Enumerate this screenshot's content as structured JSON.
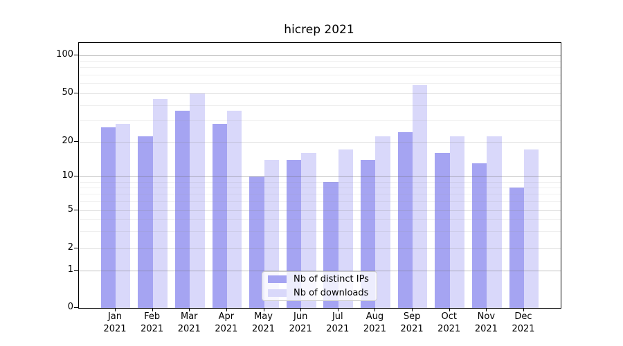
{
  "chart_data": {
    "type": "bar",
    "title": "hicrep 2021",
    "categories": [
      "Jan 2021",
      "Feb 2021",
      "Mar 2021",
      "Apr 2021",
      "May 2021",
      "Jun 2021",
      "Jul 2021",
      "Aug 2021",
      "Sep 2021",
      "Oct 2021",
      "Nov 2021",
      "Dec 2021"
    ],
    "series": [
      {
        "name": "Nb of distinct IPs",
        "color": "#a5a4f2",
        "values": [
          26,
          22,
          36,
          28,
          10,
          14,
          9,
          14,
          24,
          16,
          13,
          8
        ]
      },
      {
        "name": "Nb of downloads",
        "color": "#d9d8fa",
        "values": [
          28,
          45,
          50,
          36,
          14,
          16,
          17,
          22,
          58,
          22,
          22,
          17
        ]
      }
    ],
    "yscale": "symlog",
    "ylim": [
      0,
      100
    ],
    "y_ticks": [
      0,
      1,
      2,
      5,
      10,
      20,
      50,
      100
    ],
    "grid": "both",
    "legend_position": "lower-center-inside",
    "axis_color": "#000000"
  }
}
